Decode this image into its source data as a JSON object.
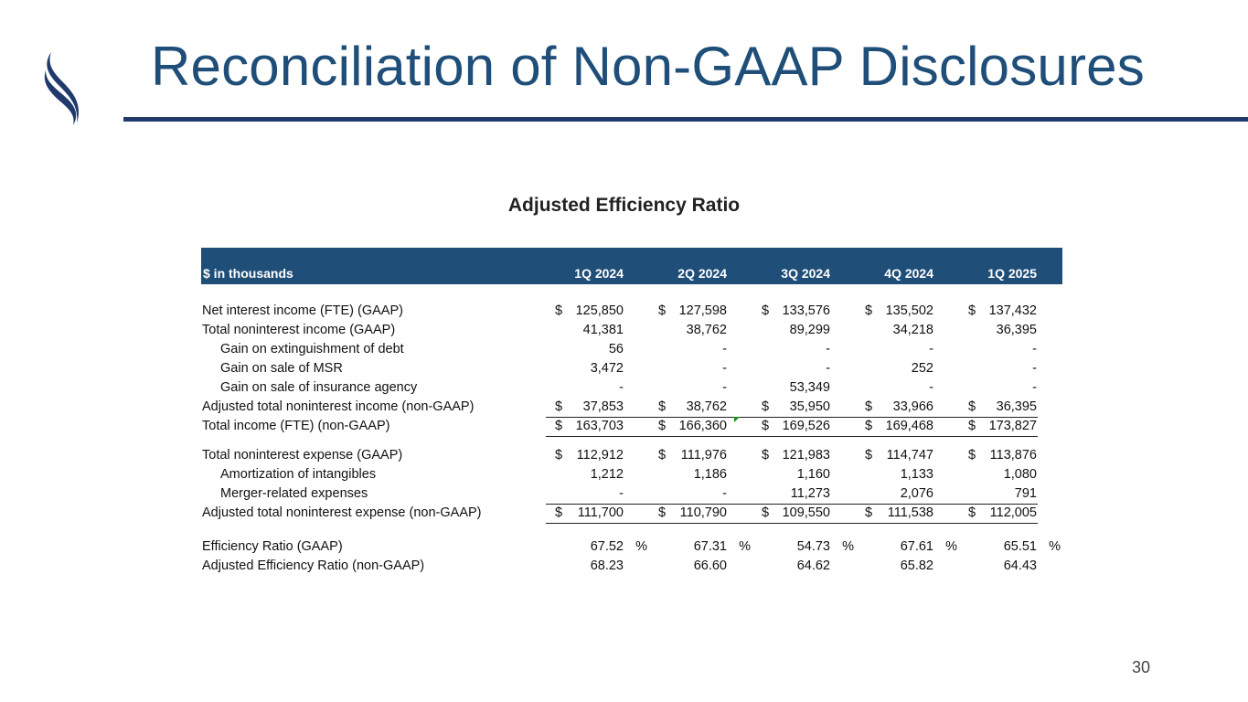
{
  "slide": {
    "title": "Reconciliation of Non-GAAP Disclosures",
    "subtitle": "Adjusted Efficiency Ratio",
    "page_number": "30",
    "accent_color": "#1f4e79"
  },
  "table": {
    "unit_label": "$ in thousands",
    "columns": [
      "1Q 2024",
      "2Q 2024",
      "3Q 2024",
      "4Q 2024",
      "1Q 2025"
    ],
    "rows": [
      {
        "label": "Net interest income (FTE) (GAAP)",
        "indent": false,
        "dollar": true,
        "values": [
          "125,850",
          "127,598",
          "133,576",
          "135,502",
          "137,432"
        ]
      },
      {
        "label": "Total noninterest income (GAAP)",
        "indent": false,
        "dollar": false,
        "values": [
          "41,381",
          "38,762",
          "89,299",
          "34,218",
          "36,395"
        ]
      },
      {
        "label": "Gain on extinguishment of debt",
        "indent": true,
        "dollar": false,
        "values": [
          "56",
          "-",
          "-",
          "-",
          "-"
        ]
      },
      {
        "label": "Gain on sale of MSR",
        "indent": true,
        "dollar": false,
        "values": [
          "3,472",
          "-",
          "-",
          "252",
          "-"
        ]
      },
      {
        "label": "Gain on sale of insurance agency",
        "indent": true,
        "dollar": false,
        "values": [
          "-",
          "-",
          "53,349",
          "-",
          "-"
        ]
      },
      {
        "label": "Adjusted total noninterest income (non-GAAP)",
        "indent": false,
        "dollar": true,
        "values": [
          "37,853",
          "38,762",
          "35,950",
          "33,966",
          "36,395"
        ]
      },
      {
        "label": "Total income (FTE) (non-GAAP)",
        "indent": false,
        "dollar": true,
        "values": [
          "163,703",
          "166,360",
          "169,526",
          "169,468",
          "173,827"
        ]
      },
      {
        "label": "Total noninterest expense (GAAP)",
        "indent": false,
        "dollar": true,
        "values": [
          "112,912",
          "111,976",
          "121,983",
          "114,747",
          "113,876"
        ]
      },
      {
        "label": "Amortization of intangibles",
        "indent": true,
        "dollar": false,
        "values": [
          "1,212",
          "1,186",
          "1,160",
          "1,133",
          "1,080"
        ]
      },
      {
        "label": "Merger-related expenses",
        "indent": true,
        "dollar": false,
        "values": [
          "-",
          "-",
          "11,273",
          "2,076",
          "791"
        ]
      },
      {
        "label": "Adjusted total noninterest expense (non-GAAP)",
        "indent": false,
        "dollar": true,
        "values": [
          "111,700",
          "110,790",
          "109,550",
          "111,538",
          "112,005"
        ]
      },
      {
        "label": "Efficiency Ratio (GAAP)",
        "indent": false,
        "dollar": false,
        "percent": true,
        "values": [
          "67.52",
          "67.31",
          "54.73",
          "67.61",
          "65.51"
        ]
      },
      {
        "label": "Adjusted Efficiency Ratio (non-GAAP)",
        "indent": false,
        "dollar": false,
        "values": [
          "68.23",
          "66.60",
          "64.62",
          "65.82",
          "64.43"
        ]
      }
    ],
    "dollar_sign": "$",
    "percent_sign": "%"
  }
}
